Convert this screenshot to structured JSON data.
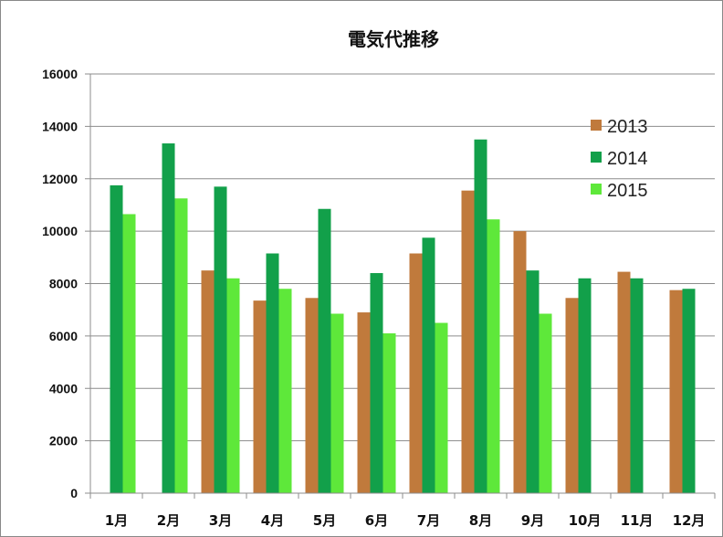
{
  "chart_data": {
    "type": "bar",
    "title": "電気代推移",
    "xlabel": "",
    "ylabel": "",
    "categories": [
      "1月",
      "2月",
      "3月",
      "4月",
      "5月",
      "6月",
      "7月",
      "8月",
      "9月",
      "10月",
      "11月",
      "12月"
    ],
    "series": [
      {
        "name": "2013",
        "color": "#c07a3c",
        "values": [
          null,
          null,
          8500,
          7350,
          7450,
          6900,
          9150,
          11550,
          10000,
          7450,
          8450,
          7750
        ]
      },
      {
        "name": "2014",
        "color": "#12a04a",
        "values": [
          11750,
          13350,
          11700,
          9150,
          10850,
          8400,
          9750,
          13500,
          8500,
          8200,
          8200,
          7800
        ]
      },
      {
        "name": "2015",
        "color": "#5ee83a",
        "values": [
          10650,
          11250,
          8200,
          7800,
          6850,
          6100,
          6500,
          10450,
          6850,
          null,
          null,
          null
        ]
      }
    ],
    "ylim": [
      0,
      16000
    ],
    "yticks": [
      0,
      2000,
      4000,
      6000,
      8000,
      10000,
      12000,
      14000,
      16000
    ],
    "grid": true,
    "legend_position": "top-right"
  }
}
